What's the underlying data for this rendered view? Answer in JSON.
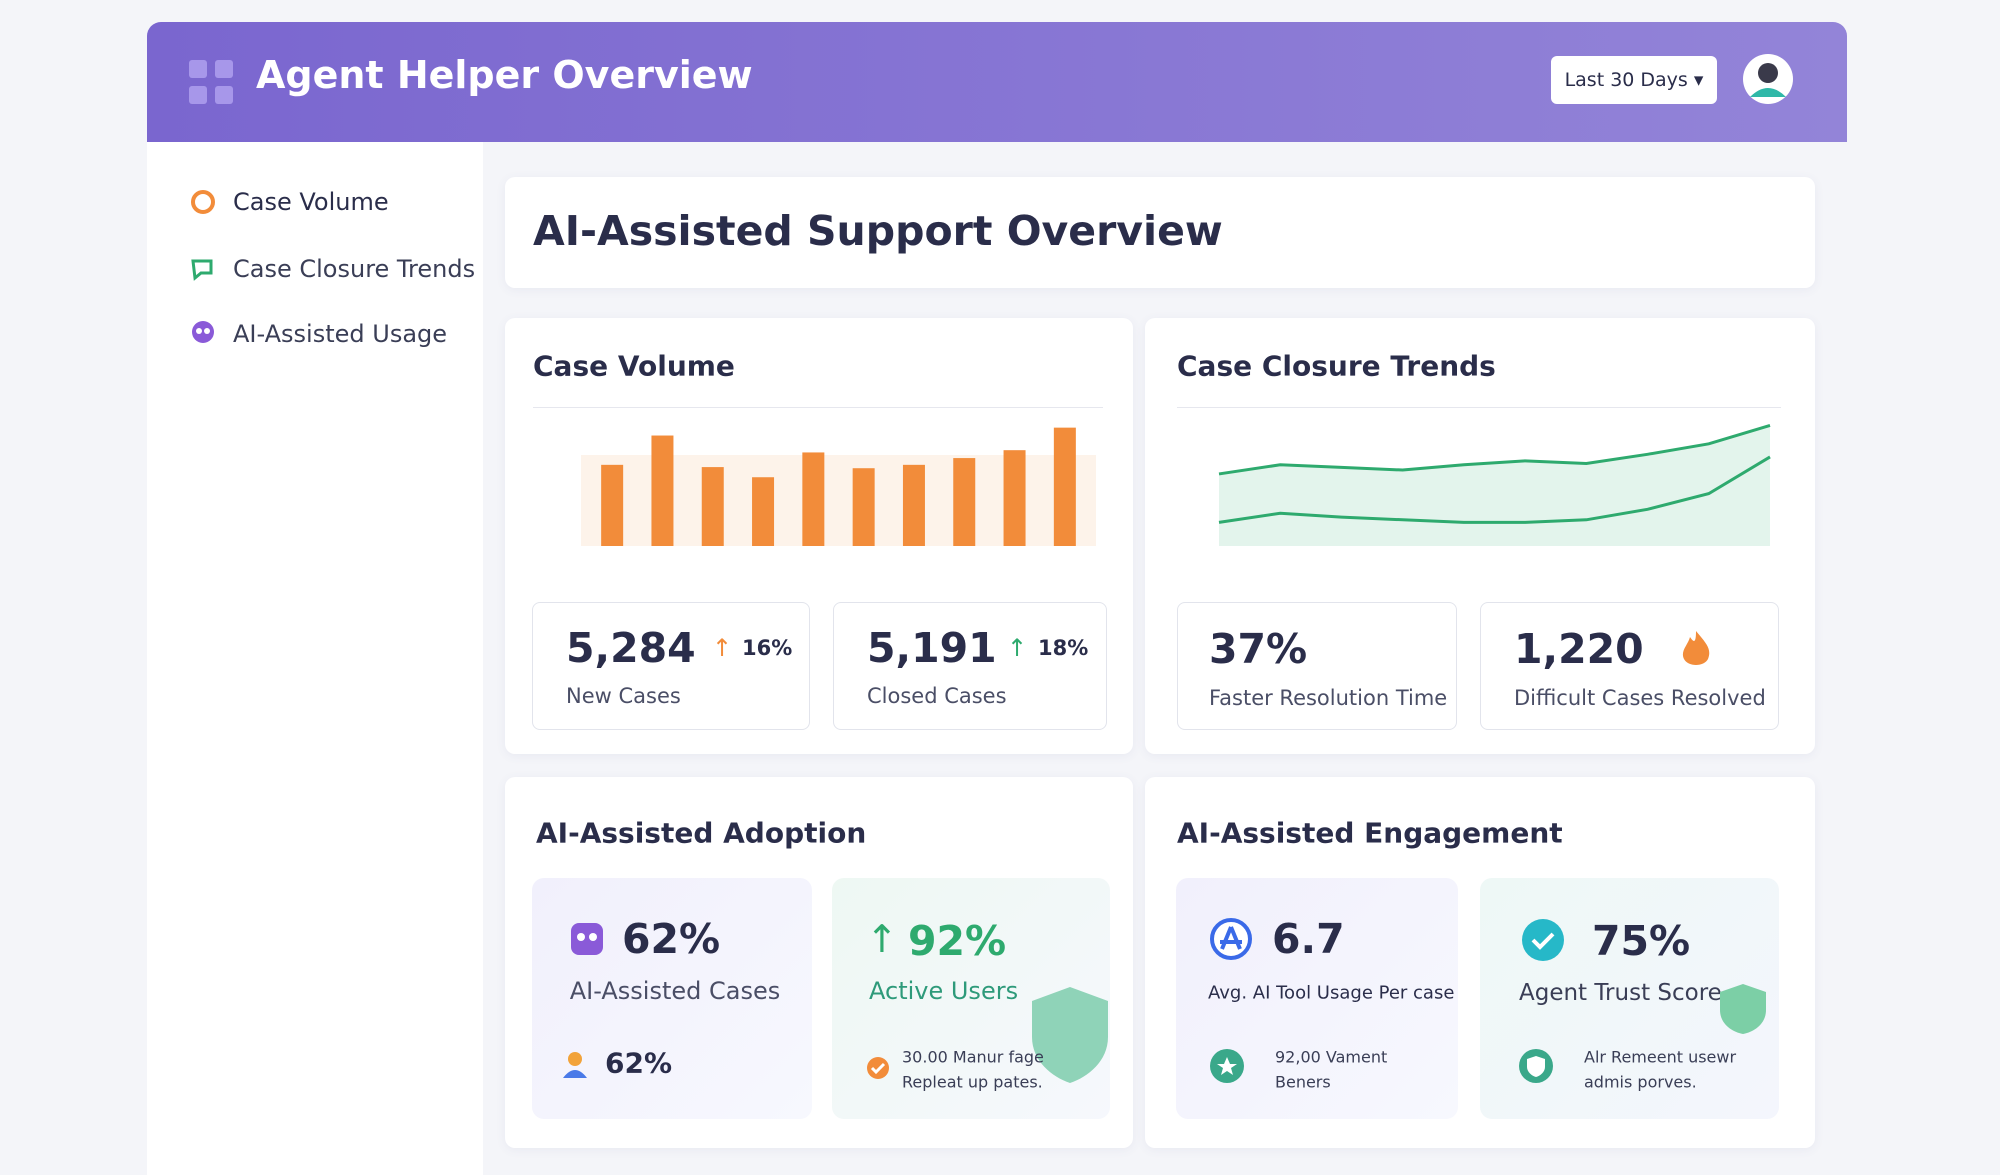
{
  "header": {
    "title": "Agent Helper Overview",
    "range_button": "Last 30 Days"
  },
  "sidebar": {
    "items": [
      "Case Volume",
      "Case Closure Trends",
      "AI-Assisted Usage"
    ]
  },
  "page_title": "AI-Assisted Support Overview",
  "case_volume": {
    "title": "Case Volume",
    "stats": [
      {
        "value": "5,284",
        "change": "16%",
        "label": "New Cases"
      },
      {
        "value": "5,191",
        "change": "18%",
        "label": "Closed Cases"
      }
    ]
  },
  "case_closure": {
    "title": "Case Closure Trends",
    "stats": [
      {
        "value": "37%",
        "label": "Faster Resolution Time"
      },
      {
        "value": "1,220",
        "label": "Difficult Cases Resolved"
      }
    ]
  },
  "adoption": {
    "title": "AI-Assisted Adoption",
    "cards": [
      {
        "value": "62%",
        "label": "AI-Assisted Cases",
        "footer": "62%"
      },
      {
        "value": "92%",
        "label": "Active Users",
        "footer_lines": [
          "30.00 Manur fage",
          "Repleat up pates."
        ]
      }
    ]
  },
  "engagement": {
    "title": "AI-Assisted Engagement",
    "cards": [
      {
        "value": "6.7",
        "label": "Avg. AI Tool Usage Per case",
        "footer_lines": [
          "92,00 Vament",
          "Beners"
        ]
      },
      {
        "value": "75%",
        "label": "Agent Trust Score",
        "footer_lines": [
          "Alr Remeent usewr",
          "admis porves."
        ]
      }
    ]
  },
  "chart_data": [
    {
      "type": "bar",
      "categories": [
        null,
        null,
        null,
        null,
        null,
        null,
        null,
        null,
        null,
        null
      ],
      "values": [
        72,
        98,
        70,
        61,
        83,
        69,
        72,
        78,
        85,
        105
      ],
      "color": "#f28c3a",
      "ylim": [
        0,
        110
      ]
    },
    {
      "type": "line",
      "categories": [
        null,
        null,
        null,
        null,
        null,
        null,
        null,
        null,
        null,
        null
      ],
      "series": [
        {
          "color": "#2eaa6e",
          "values": [
            55,
            62,
            60,
            58,
            62,
            65,
            63,
            70,
            78,
            92
          ]
        },
        {
          "color": "#2eaa6e",
          "values": [
            18,
            25,
            22,
            20,
            18,
            18,
            20,
            28,
            40,
            68
          ]
        }
      ],
      "ylim": [
        0,
        100
      ]
    }
  ]
}
